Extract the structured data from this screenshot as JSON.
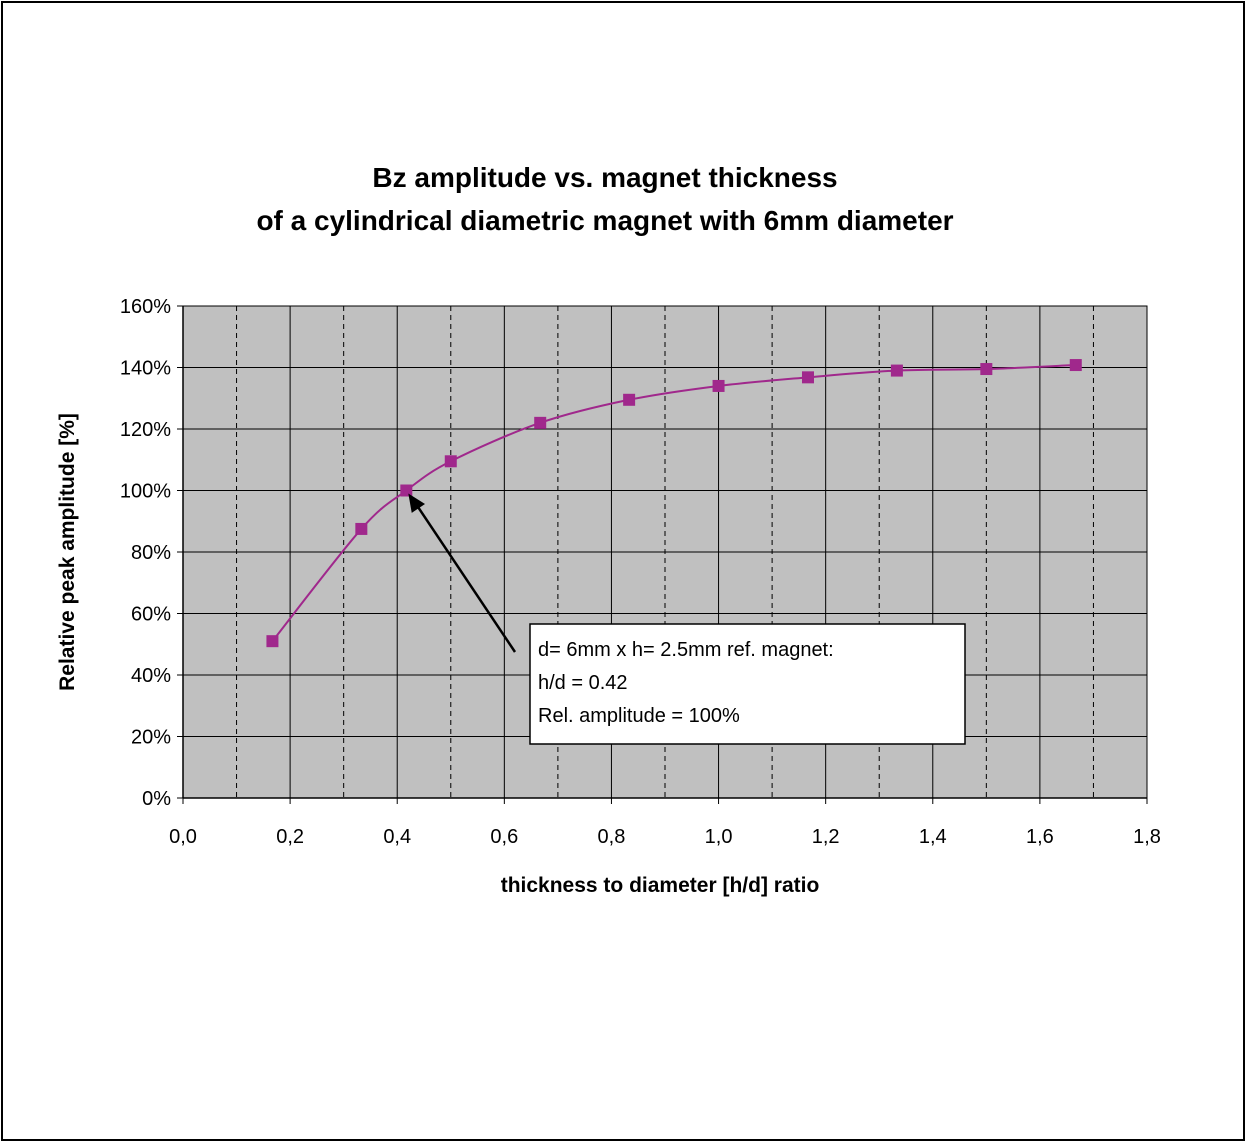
{
  "chart_data": {
    "type": "line",
    "title": "Bz amplitude vs. magnet thickness",
    "subtitle": "of a cylindrical diametric magnet with 6mm diameter",
    "xlabel": "thickness to diameter [h/d] ratio",
    "ylabel": "Relative peak amplitude [%]",
    "xlim": [
      0,
      1.8
    ],
    "ylim": [
      0,
      160
    ],
    "x_ticks": [
      "0,0",
      "0,2",
      "0,4",
      "0,6",
      "0,8",
      "1,0",
      "1,2",
      "1,4",
      "1,6",
      "1,8"
    ],
    "y_ticks": [
      "0%",
      "20%",
      "40%",
      "60%",
      "80%",
      "100%",
      "120%",
      "140%",
      "160%"
    ],
    "grid": true,
    "plot_background": "#c0c0c0",
    "series": [
      {
        "color": "#a0288c",
        "marker": "square",
        "x": [
          0.167,
          0.333,
          0.417,
          0.5,
          0.667,
          0.833,
          1.0,
          1.167,
          1.333,
          1.5,
          1.667
        ],
        "y": [
          51,
          87.5,
          100,
          109.5,
          122,
          129.5,
          134,
          136.8,
          139,
          139.5,
          140.8
        ]
      }
    ],
    "annotation": {
      "lines": [
        "d= 6mm x h= 2.5mm ref. magnet:",
        "h/d = 0.42",
        "Rel. amplitude = 100%"
      ],
      "arrow_to": {
        "x": 0.417,
        "y": 100
      }
    }
  }
}
